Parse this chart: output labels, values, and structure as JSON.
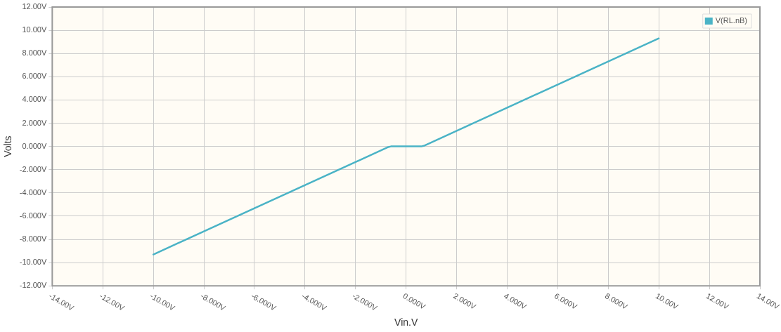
{
  "chart_data": {
    "type": "line",
    "xlabel": "Vin.V",
    "ylabel": "Volts",
    "x": [
      -10,
      -0.7,
      -0.6,
      0.6,
      0.7,
      10
    ],
    "series": [
      {
        "name": "V(RL.nB)",
        "color": "#4ab3c6",
        "values": [
          -9.3,
          -0.05,
          0,
          0,
          0.05,
          9.3
        ]
      }
    ],
    "xlim": [
      -14,
      14
    ],
    "xticks": [
      {
        "value": -14,
        "label": "-14.00V"
      },
      {
        "value": -12,
        "label": "-12.00V"
      },
      {
        "value": -10,
        "label": "-10.00V"
      },
      {
        "value": -8,
        "label": "-8.000V"
      },
      {
        "value": -6,
        "label": "-6.000V"
      },
      {
        "value": -4,
        "label": "-4.000V"
      },
      {
        "value": -2,
        "label": "-2.000V"
      },
      {
        "value": 0,
        "label": "0.000V"
      },
      {
        "value": 2,
        "label": "2.000V"
      },
      {
        "value": 4,
        "label": "4.000V"
      },
      {
        "value": 6,
        "label": "6.000V"
      },
      {
        "value": 8,
        "label": "8.000V"
      },
      {
        "value": 10,
        "label": "10.00V"
      },
      {
        "value": 12,
        "label": "12.00V"
      },
      {
        "value": 14,
        "label": "14.00V"
      }
    ],
    "ylim": [
      -12,
      12
    ],
    "yticks": [
      {
        "value": -12,
        "label": "-12.00V"
      },
      {
        "value": -10,
        "label": "-10.00V"
      },
      {
        "value": -8,
        "label": "-8.000V"
      },
      {
        "value": -6,
        "label": "-6.000V"
      },
      {
        "value": -4,
        "label": "-4.000V"
      },
      {
        "value": -2,
        "label": "-2.000V"
      },
      {
        "value": 0,
        "label": "0.000V"
      },
      {
        "value": 2,
        "label": "2.000V"
      },
      {
        "value": 4,
        "label": "4.000V"
      },
      {
        "value": 6,
        "label": "6.000V"
      },
      {
        "value": 8,
        "label": "8.000V"
      },
      {
        "value": 10,
        "label": "10.00V"
      },
      {
        "value": 12,
        "label": "12.00V"
      }
    ],
    "grid": true,
    "legend": "top right",
    "marker": "none",
    "line_style": "solid"
  }
}
